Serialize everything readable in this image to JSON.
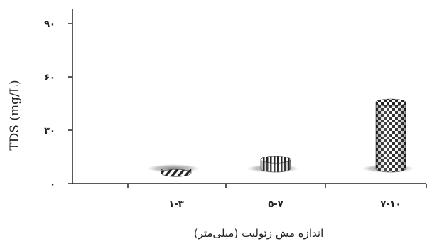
{
  "chart_data": {
    "type": "bar",
    "categories": [
      "۱-۳",
      "۵-۷",
      "۷-۱۰"
    ],
    "values": [
      11.5,
      19.5,
      52
    ],
    "ylabel": "TDS (mg/L)",
    "xlabel": "اندازه مش زئولیت (میلی‌متر)",
    "ylim": [
      0,
      90
    ],
    "yticks": [
      0,
      30,
      60,
      90
    ],
    "ytick_labels": [
      "۰",
      "۳۰",
      "۶۰",
      "۹۰"
    ],
    "bar_patterns": [
      "diagonal-stripes",
      "vertical-stripes",
      "checkerboard"
    ],
    "grid": false,
    "legend": "none"
  },
  "colors": {
    "axis": "#222222",
    "pattern_dark": "#222222",
    "pattern_light": "#ffffff"
  }
}
